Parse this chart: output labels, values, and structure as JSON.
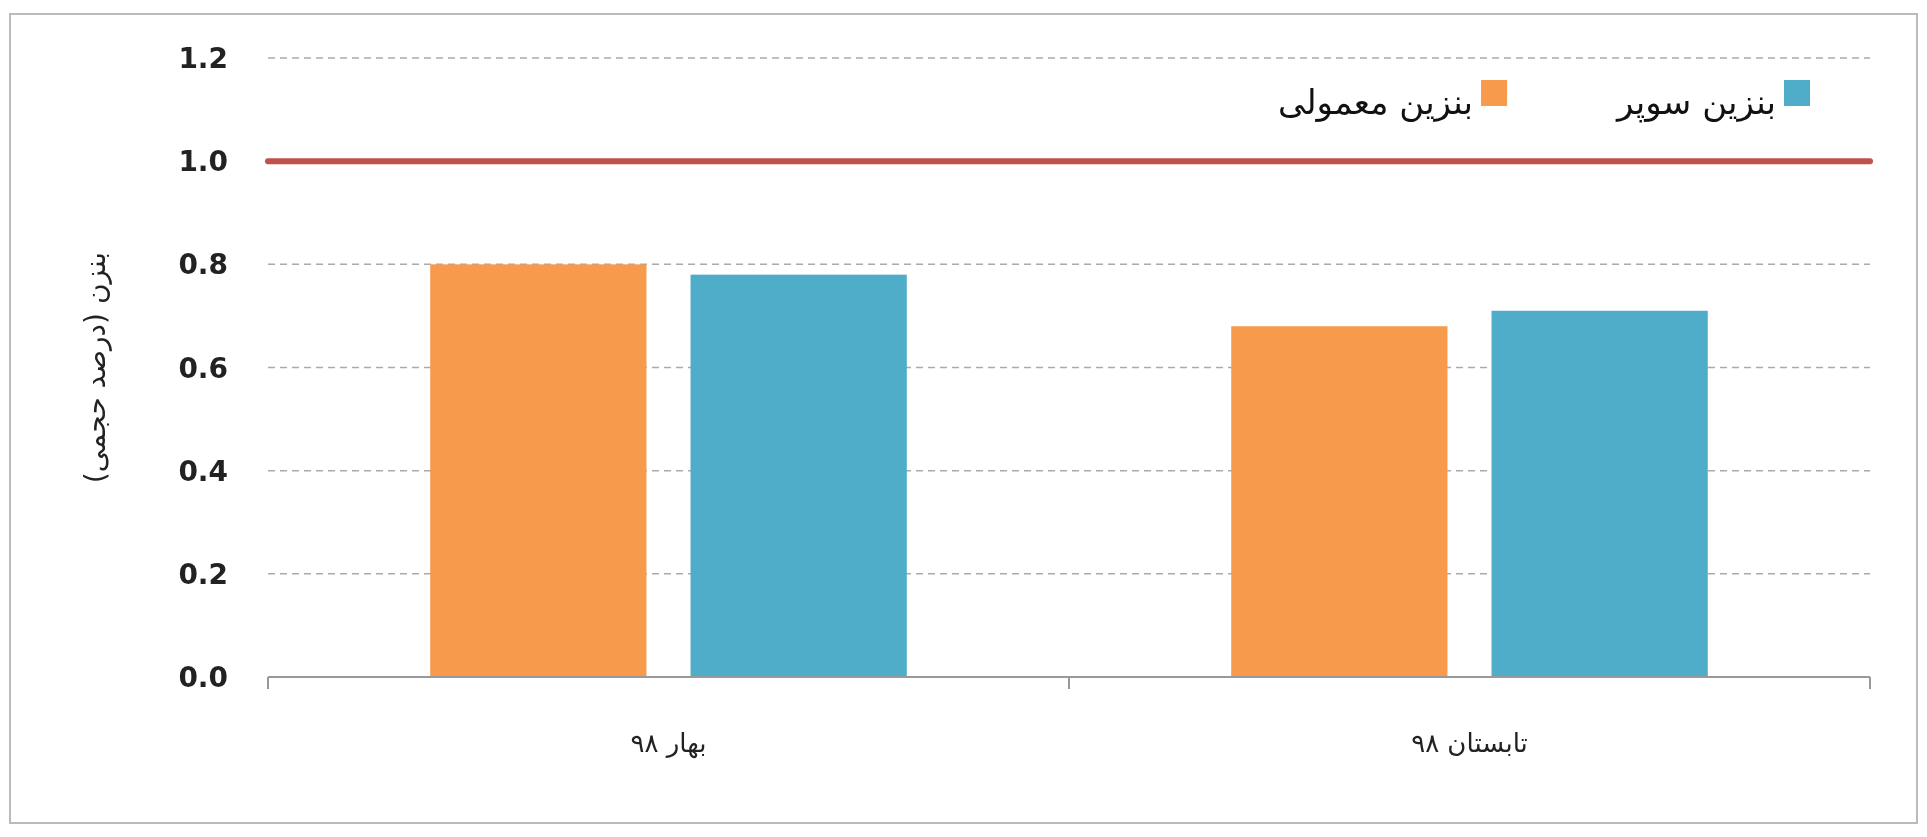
{
  "chart_data": {
    "type": "bar",
    "ylabel": "بنزن (درصد حجمی)",
    "categories": [
      "بهار ۹۸",
      "تابستان ۹۸"
    ],
    "series": [
      {
        "name": "بنزین معمولی",
        "color": "#f79a4b",
        "values": [
          0.8,
          0.68
        ]
      },
      {
        "name": "بنزین سوپر",
        "color": "#4fadc9",
        "values": [
          0.78,
          0.71
        ]
      }
    ],
    "ylim": [
      0,
      1.2
    ],
    "yticks": [
      {
        "value": 0,
        "label": "0.0"
      },
      {
        "value": 0.2,
        "label": "0.2"
      },
      {
        "value": 0.4,
        "label": "0.4"
      },
      {
        "value": 0.6,
        "label": "0.6"
      },
      {
        "value": 0.8,
        "label": "0.8"
      },
      {
        "value": 1,
        "label": "1.0"
      },
      {
        "value": 1.2,
        "label": "1.2"
      }
    ],
    "ref_lines": [
      {
        "axis": "y",
        "value": 1.0,
        "color": "#c0504d",
        "line_style": "solid"
      }
    ],
    "grid": "y",
    "legend": "top right"
  }
}
